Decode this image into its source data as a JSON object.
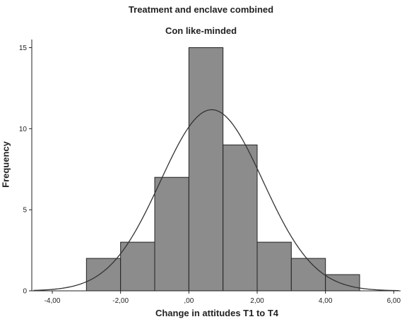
{
  "chart_data": {
    "type": "bar",
    "title": "Treatment and enclave combined",
    "subtitle": "Con like-minded",
    "xlabel": "Change in attitudes T1 to T4",
    "ylabel": "Frequency",
    "bins": [
      {
        "x0": -3,
        "x1": -2,
        "count": 2
      },
      {
        "x0": -2,
        "x1": -1,
        "count": 3
      },
      {
        "x0": -1,
        "x1": 0,
        "count": 7
      },
      {
        "x0": 0,
        "x1": 1,
        "count": 15
      },
      {
        "x0": 1,
        "x1": 2,
        "count": 9
      },
      {
        "x0": 2,
        "x1": 3,
        "count": 3
      },
      {
        "x0": 3,
        "x1": 4,
        "count": 2
      },
      {
        "x0": 4,
        "x1": 5,
        "count": 1
      }
    ],
    "normal_curve": {
      "mean": 0.67,
      "sd": 1.5,
      "n": 42,
      "bin_width": 1
    },
    "xlim": [
      -4.6,
      6.2
    ],
    "ylim": [
      0,
      15.5
    ],
    "xticks": [
      -4,
      -2,
      0,
      2,
      4,
      6
    ],
    "xtick_labels": [
      "-4,00",
      "-2,00",
      ",00",
      "2,00",
      "4,00",
      "6,00"
    ],
    "yticks": [
      0,
      5,
      10,
      15
    ],
    "ytick_labels": [
      "0",
      "5",
      "10",
      "15"
    ],
    "colors": {
      "bar": "#8c8c8c",
      "bar_edge": "#222222",
      "curve": "#333333"
    }
  }
}
